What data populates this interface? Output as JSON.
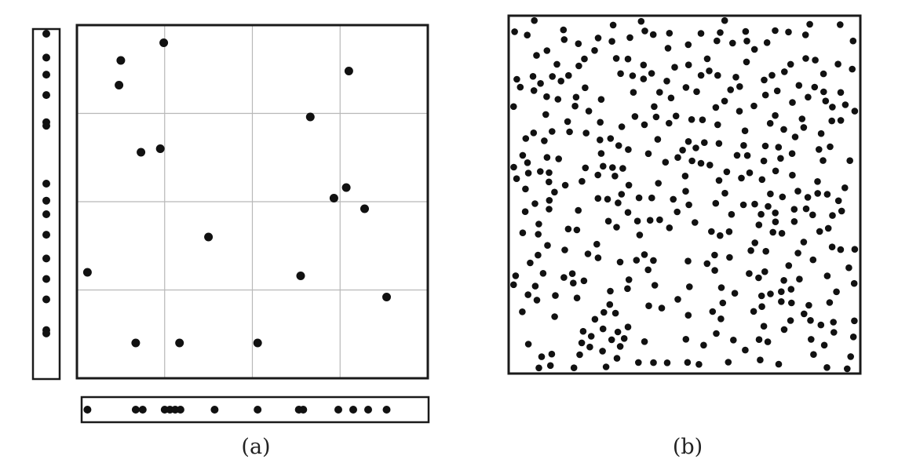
{
  "panel_a": {
    "caption": "(a)",
    "grid_divisions": 4,
    "points": [
      [
        0.5,
        0.1
      ],
      [
        0.99,
        0.05
      ],
      [
        0.48,
        0.17
      ],
      [
        2.66,
        0.26
      ],
      [
        3.1,
        0.13
      ],
      [
        0.73,
        0.36
      ],
      [
        0.95,
        0.35
      ],
      [
        3.07,
        0.46
      ],
      [
        2.93,
        0.49
      ],
      [
        3.28,
        0.52
      ],
      [
        1.5,
        0.6
      ],
      [
        0.12,
        0.7
      ],
      [
        2.55,
        0.71
      ],
      [
        3.53,
        0.77
      ],
      [
        0.67,
        0.9
      ],
      [
        1.17,
        0.9
      ],
      [
        2.06,
        0.9
      ]
    ],
    "x_projection": [
      0.12,
      0.67,
      0.75,
      1.0,
      1.06,
      1.12,
      1.18,
      1.57,
      2.06,
      2.53,
      2.58,
      2.98,
      3.15,
      3.32,
      3.53
    ],
    "y_projection": [
      0.0,
      0.07,
      0.12,
      0.18,
      0.26,
      0.27,
      0.44,
      0.49,
      0.53,
      0.59,
      0.66,
      0.72,
      0.78,
      0.87,
      0.88
    ]
  },
  "panel_b": {
    "caption": "(b)",
    "point_count": 380
  }
}
